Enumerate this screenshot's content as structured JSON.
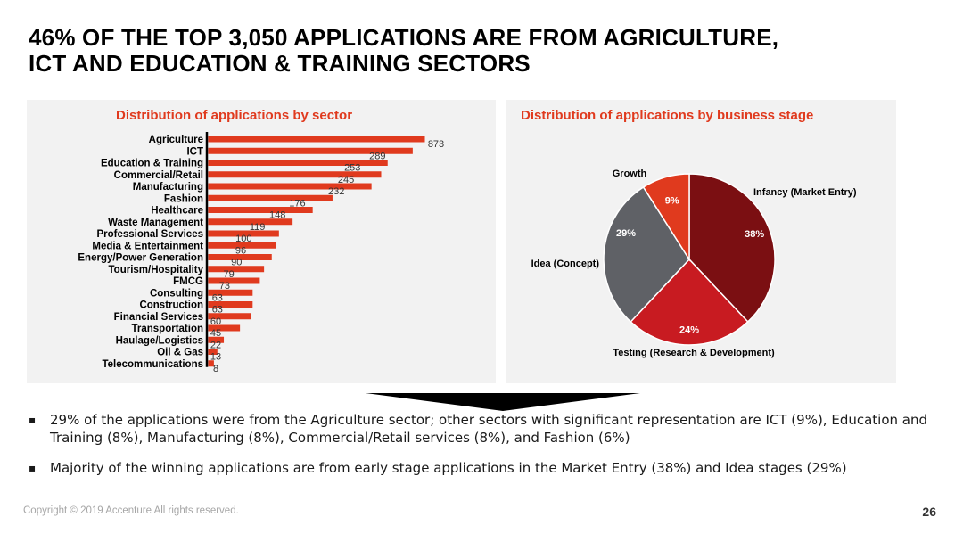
{
  "slide": {
    "title_line1": "46% OF THE TOP 3,050 APPLICATIONS ARE FROM AGRICULTURE,",
    "title_line2": "ICT AND EDUCATION & TRAINING SECTORS",
    "bullets": [
      "29% of the applications were from the Agriculture sector; other sectors with significant representation are ICT (9%), Education and Training (8%), Manufacturing (8%), Commercial/Retail services (8%), and Fashion (6%)",
      "Majority of the winning applications are from early stage applications in the Market Entry (38%)  and Idea stages (29%)"
    ],
    "bullet_marker": "▪",
    "footer": "Copyright © 2019 Accenture  All rights reserved.",
    "page_number": "26"
  },
  "colors": {
    "accent": "#e03a1e",
    "bar": "#e03a1e",
    "axis": "#000000"
  },
  "chart_data": [
    {
      "type": "bar",
      "orientation": "horizontal",
      "title": "Distribution of applications by sector",
      "categories": [
        "Agriculture",
        "ICT",
        "Education & Training",
        "Commercial/Retail",
        "Manufacturing",
        "Fashion",
        "Healthcare",
        "Waste Management",
        "Professional Services",
        "Media & Entertainment",
        "Energy/Power Generation",
        "Tourism/Hospitality",
        "FMCG",
        "Consulting",
        "Construction",
        "Financial Services",
        "Transportation",
        "Haulage/Logistics",
        "Oil & Gas",
        "Telecommunications"
      ],
      "values": [
        873,
        289,
        253,
        245,
        232,
        176,
        148,
        119,
        100,
        96,
        90,
        79,
        73,
        63,
        63,
        60,
        45,
        22,
        13,
        8
      ],
      "bar_lengths": [
        873,
        824,
        723,
        697,
        658,
        501,
        421,
        340,
        285,
        273,
        256,
        225,
        208,
        179,
        179,
        171,
        128,
        63,
        37,
        23
      ],
      "xlim": [
        0,
        873
      ],
      "grid": false,
      "legend": "none",
      "xlabel": "",
      "ylabel": ""
    },
    {
      "type": "pie",
      "title": "Distribution of applications by business stage",
      "slices": [
        {
          "label": "Infancy (Market Entry)",
          "value": 38,
          "pct_label": "38%",
          "color": "#7b0f12"
        },
        {
          "label": "Testing (Research & Development)",
          "value": 24,
          "pct_label": "24%",
          "color": "#c81b21"
        },
        {
          "label": "Idea (Concept)",
          "value": 29,
          "pct_label": "29%",
          "color": "#5f6166"
        },
        {
          "label": "Growth",
          "value": 9,
          "pct_label": "9%",
          "color": "#e03a1e"
        }
      ],
      "legend": "none"
    }
  ]
}
